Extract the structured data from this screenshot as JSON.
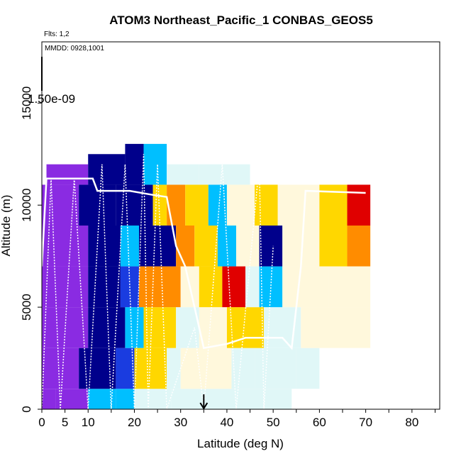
{
  "chart_data": {
    "type": "heatmap",
    "title": "ATOM3 Northeast_Pacific_1 CONBAS_GEOS5",
    "subtitle_flights": "Flts: 1,2",
    "subtitle_dates": "MMDD: 0928,1001",
    "xlabel": "Latitude (deg N)",
    "ylabel": "Altitude (m)",
    "colorbar_max_label": "1.50e-09",
    "xlim": [
      0,
      86
    ],
    "ylim": [
      0,
      18000
    ],
    "x_ticks": [
      0,
      5,
      10,
      20,
      30,
      40,
      50,
      60,
      70,
      80
    ],
    "y_ticks": [
      0,
      5000,
      10000,
      15000
    ],
    "marker_latitude": 35,
    "colors": {
      "purple": "#8a2be2",
      "dark_blue": "#00008b",
      "blue": "#1a3ce0",
      "sky": "#00bfff",
      "pale": "#e0f7f7",
      "cream": "#fff8dc",
      "yellow": "#ffd700",
      "orange": "#ff8c00",
      "red": "#e00000"
    },
    "cells": [
      {
        "lat": [
          0,
          3
        ],
        "alt": [
          0,
          1000
        ],
        "c": "purple"
      },
      {
        "lat": [
          3,
          10
        ],
        "alt": [
          0,
          1000
        ],
        "c": "purple"
      },
      {
        "lat": [
          10,
          16
        ],
        "alt": [
          0,
          1000
        ],
        "c": "sky"
      },
      {
        "lat": [
          16,
          20
        ],
        "alt": [
          0,
          1000
        ],
        "c": "sky"
      },
      {
        "lat": [
          20,
          28
        ],
        "alt": [
          0,
          1000
        ],
        "c": "pale"
      },
      {
        "lat": [
          28,
          35
        ],
        "alt": [
          0,
          1000
        ],
        "c": "pale"
      },
      {
        "lat": [
          35,
          54
        ],
        "alt": [
          0,
          1000
        ],
        "c": "pale"
      },
      {
        "lat": [
          0,
          8
        ],
        "alt": [
          1000,
          3000
        ],
        "c": "purple"
      },
      {
        "lat": [
          8,
          16
        ],
        "alt": [
          1000,
          3000
        ],
        "c": "dark_blue"
      },
      {
        "lat": [
          16,
          20
        ],
        "alt": [
          1000,
          3000
        ],
        "c": "blue"
      },
      {
        "lat": [
          20,
          27
        ],
        "alt": [
          1000,
          3000
        ],
        "c": "yellow"
      },
      {
        "lat": [
          27,
          30
        ],
        "alt": [
          1000,
          3000
        ],
        "c": "pale"
      },
      {
        "lat": [
          30,
          41
        ],
        "alt": [
          1000,
          3000
        ],
        "c": "cream"
      },
      {
        "lat": [
          41,
          46
        ],
        "alt": [
          1000,
          3000
        ],
        "c": "pale"
      },
      {
        "lat": [
          46,
          55
        ],
        "alt": [
          1000,
          3000
        ],
        "c": "pale"
      },
      {
        "lat": [
          55,
          60
        ],
        "alt": [
          1000,
          3000
        ],
        "c": "pale"
      },
      {
        "lat": [
          0,
          10
        ],
        "alt": [
          3000,
          5000
        ],
        "c": "purple"
      },
      {
        "lat": [
          10,
          18
        ],
        "alt": [
          3000,
          5000
        ],
        "c": "dark_blue"
      },
      {
        "lat": [
          18,
          22
        ],
        "alt": [
          3000,
          5000
        ],
        "c": "sky"
      },
      {
        "lat": [
          22,
          29
        ],
        "alt": [
          3000,
          5000
        ],
        "c": "yellow"
      },
      {
        "lat": [
          29,
          34
        ],
        "alt": [
          3000,
          5000
        ],
        "c": "pale"
      },
      {
        "lat": [
          34,
          40
        ],
        "alt": [
          3000,
          5000
        ],
        "c": "cream"
      },
      {
        "lat": [
          40,
          48
        ],
        "alt": [
          3000,
          5000
        ],
        "c": "yellow"
      },
      {
        "lat": [
          48,
          56
        ],
        "alt": [
          3000,
          5000
        ],
        "c": "pale"
      },
      {
        "lat": [
          56,
          64
        ],
        "alt": [
          3000,
          5000
        ],
        "c": "cream"
      },
      {
        "lat": [
          64,
          71
        ],
        "alt": [
          3000,
          5000
        ],
        "c": "cream"
      },
      {
        "lat": [
          0,
          10
        ],
        "alt": [
          5000,
          7000
        ],
        "c": "purple"
      },
      {
        "lat": [
          10,
          17
        ],
        "alt": [
          5000,
          7000
        ],
        "c": "dark_blue"
      },
      {
        "lat": [
          17,
          21
        ],
        "alt": [
          5000,
          7000
        ],
        "c": "blue"
      },
      {
        "lat": [
          21,
          30
        ],
        "alt": [
          5000,
          7000
        ],
        "c": "orange"
      },
      {
        "lat": [
          30,
          34
        ],
        "alt": [
          5000,
          7000
        ],
        "c": "cream"
      },
      {
        "lat": [
          34,
          39
        ],
        "alt": [
          5000,
          7000
        ],
        "c": "yellow"
      },
      {
        "lat": [
          39,
          44
        ],
        "alt": [
          5000,
          7000
        ],
        "c": "red"
      },
      {
        "lat": [
          44,
          47
        ],
        "alt": [
          5000,
          7000
        ],
        "c": "pale"
      },
      {
        "lat": [
          47,
          52
        ],
        "alt": [
          5000,
          7000
        ],
        "c": "sky"
      },
      {
        "lat": [
          52,
          62
        ],
        "alt": [
          5000,
          7000
        ],
        "c": "cream"
      },
      {
        "lat": [
          62,
          71
        ],
        "alt": [
          5000,
          7000
        ],
        "c": "cream"
      },
      {
        "lat": [
          0,
          10
        ],
        "alt": [
          7000,
          9000
        ],
        "c": "purple"
      },
      {
        "lat": [
          10,
          17
        ],
        "alt": [
          7000,
          9000
        ],
        "c": "dark_blue"
      },
      {
        "lat": [
          17,
          21
        ],
        "alt": [
          7000,
          9000
        ],
        "c": "sky"
      },
      {
        "lat": [
          21,
          29
        ],
        "alt": [
          7000,
          9000
        ],
        "c": "dark_blue"
      },
      {
        "lat": [
          29,
          33
        ],
        "alt": [
          7000,
          9000
        ],
        "c": "orange"
      },
      {
        "lat": [
          33,
          38
        ],
        "alt": [
          7000,
          9000
        ],
        "c": "yellow"
      },
      {
        "lat": [
          38,
          42
        ],
        "alt": [
          7000,
          9000
        ],
        "c": "sky"
      },
      {
        "lat": [
          42,
          47
        ],
        "alt": [
          7000,
          9000
        ],
        "c": "cream"
      },
      {
        "lat": [
          47,
          52
        ],
        "alt": [
          7000,
          9000
        ],
        "c": "dark_blue"
      },
      {
        "lat": [
          52,
          60
        ],
        "alt": [
          7000,
          9000
        ],
        "c": "cream"
      },
      {
        "lat": [
          60,
          66
        ],
        "alt": [
          7000,
          9000
        ],
        "c": "yellow"
      },
      {
        "lat": [
          66,
          71
        ],
        "alt": [
          7000,
          9000
        ],
        "c": "orange"
      },
      {
        "lat": [
          0,
          8
        ],
        "alt": [
          9000,
          11000
        ],
        "c": "purple"
      },
      {
        "lat": [
          8,
          16
        ],
        "alt": [
          9000,
          11000
        ],
        "c": "dark_blue"
      },
      {
        "lat": [
          16,
          24
        ],
        "alt": [
          9000,
          11000
        ],
        "c": "dark_blue"
      },
      {
        "lat": [
          24,
          27
        ],
        "alt": [
          9000,
          11000
        ],
        "c": "yellow"
      },
      {
        "lat": [
          27,
          31
        ],
        "alt": [
          9000,
          11000
        ],
        "c": "orange"
      },
      {
        "lat": [
          31,
          36
        ],
        "alt": [
          9000,
          11000
        ],
        "c": "yellow"
      },
      {
        "lat": [
          36,
          40
        ],
        "alt": [
          9000,
          11000
        ],
        "c": "sky"
      },
      {
        "lat": [
          40,
          46
        ],
        "alt": [
          9000,
          11000
        ],
        "c": "cream"
      },
      {
        "lat": [
          46,
          51
        ],
        "alt": [
          9000,
          11000
        ],
        "c": "yellow"
      },
      {
        "lat": [
          51,
          60
        ],
        "alt": [
          9000,
          11000
        ],
        "c": "cream"
      },
      {
        "lat": [
          60,
          66
        ],
        "alt": [
          9000,
          11000
        ],
        "c": "yellow"
      },
      {
        "lat": [
          66,
          71
        ],
        "alt": [
          9000,
          11000
        ],
        "c": "red"
      },
      {
        "lat": [
          1,
          10
        ],
        "alt": [
          11000,
          12000
        ],
        "c": "purple"
      },
      {
        "lat": [
          10,
          18
        ],
        "alt": [
          11000,
          12500
        ],
        "c": "dark_blue"
      },
      {
        "lat": [
          18,
          22
        ],
        "alt": [
          11000,
          13000
        ],
        "c": "dark_blue"
      },
      {
        "lat": [
          22,
          27
        ],
        "alt": [
          11000,
          13000
        ],
        "c": "sky"
      },
      {
        "lat": [
          27,
          34
        ],
        "alt": [
          11000,
          12000
        ],
        "c": "pale"
      },
      {
        "lat": [
          34,
          45
        ],
        "alt": [
          11000,
          12000
        ],
        "c": "pale"
      }
    ],
    "flight_path_solid": [
      [
        0,
        7000
      ],
      [
        1,
        11300
      ],
      [
        5,
        11300
      ],
      [
        11,
        11300
      ],
      [
        12,
        10700
      ],
      [
        19,
        10700
      ],
      [
        24,
        10500
      ],
      [
        27,
        10400
      ],
      [
        29,
        8000
      ],
      [
        31,
        7000
      ],
      [
        33,
        5000
      ],
      [
        35,
        3000
      ],
      [
        40,
        3200
      ],
      [
        44,
        3500
      ],
      [
        52,
        3500
      ],
      [
        54,
        3000
      ],
      [
        56,
        7000
      ],
      [
        57,
        10700
      ],
      [
        70,
        10600
      ]
    ],
    "flight_path_dotted": [
      [
        0,
        0
      ],
      [
        2,
        11300
      ],
      [
        4,
        0
      ],
      [
        7,
        11300
      ],
      [
        10,
        0
      ],
      [
        13,
        12000
      ],
      [
        15,
        0
      ],
      [
        18,
        12000
      ],
      [
        20,
        0
      ],
      [
        22,
        12500
      ],
      [
        23,
        0
      ],
      [
        25,
        12000
      ],
      [
        27,
        0
      ],
      [
        33,
        4000
      ],
      [
        35,
        0
      ],
      [
        39,
        12000
      ],
      [
        42,
        0
      ],
      [
        47,
        12000
      ],
      [
        48,
        0
      ],
      [
        50,
        8000
      ]
    ]
  }
}
